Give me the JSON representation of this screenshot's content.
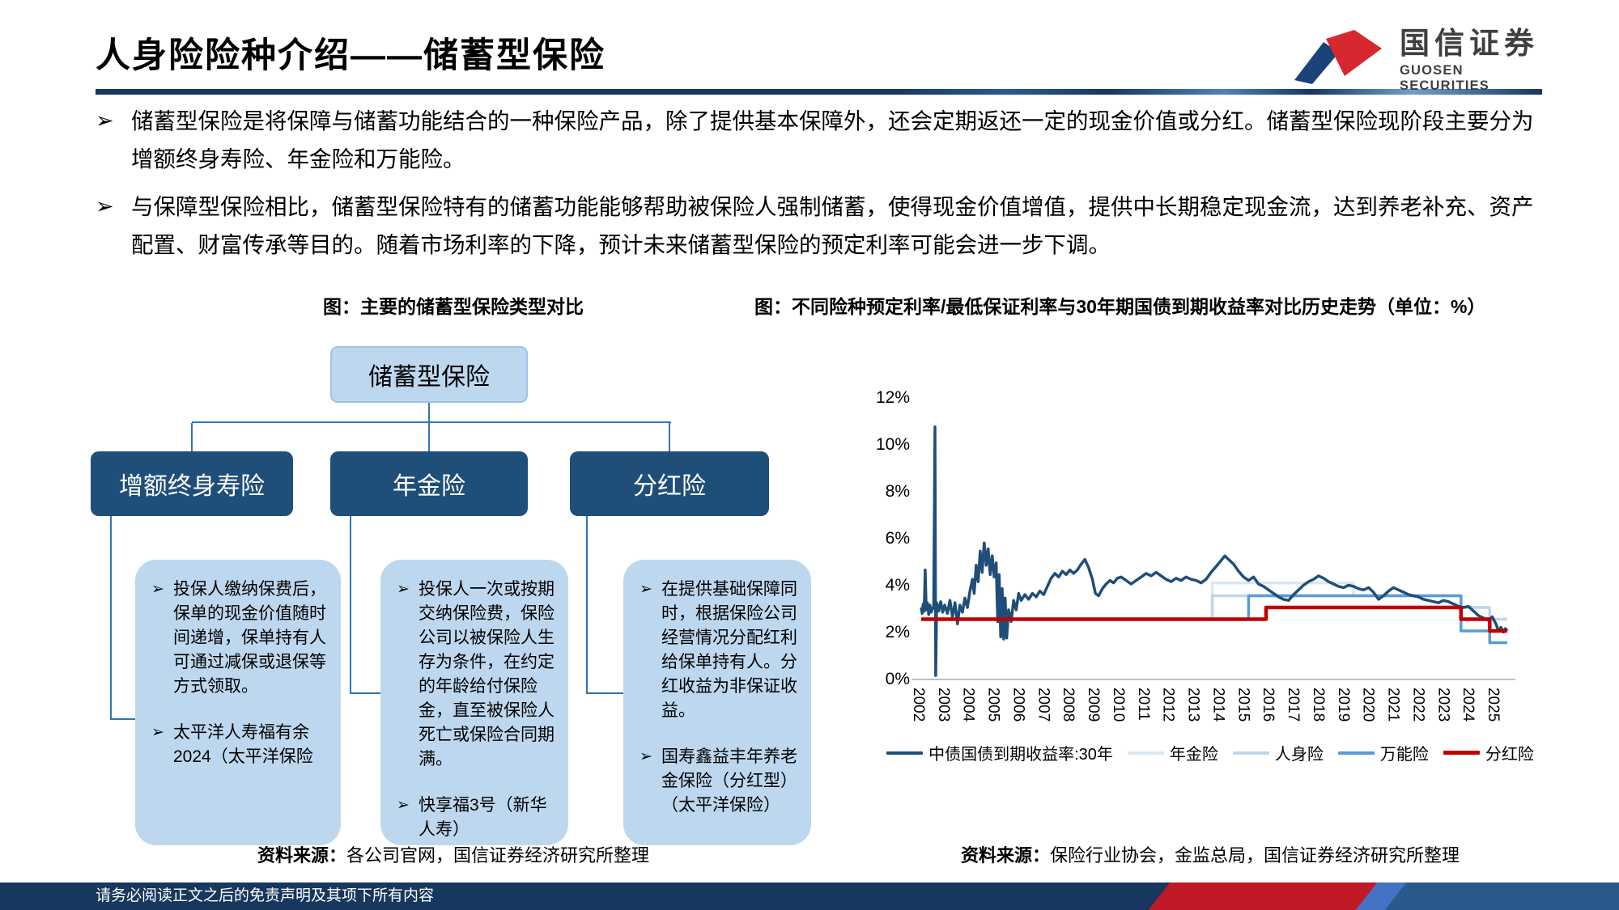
{
  "page": {
    "title": "人身险险种介绍——储蓄型保险",
    "logo": {
      "name_cn": "国信证券",
      "name_en": "GUOSEN SECURITIES"
    },
    "bullet_marker": "➢",
    "bullets": [
      "储蓄型保险是将保障与储蓄功能结合的一种保险产品，除了提供基本保障外，还会定期返还一定的现金价值或分红。储蓄型保险现阶段主要分为增额终身寿险、年金险和万能险。",
      "与保障型保险相比，储蓄型保险特有的储蓄功能能够帮助被保险人强制储蓄，使得现金价值增值，提供中长期稳定现金流，达到养老补充、资产配置、财富传承等目的。随着市场利率的下降，预计未来储蓄型保险的预定利率可能会进一步下调。"
    ],
    "footer_disclaimer": "请务必阅读正文之后的免责声明及其项下所有内容"
  },
  "diagram": {
    "caption": "图：主要的储蓄型保险类型对比",
    "root_label": "储蓄型保险",
    "branches": [
      {
        "label": "增额终身寿险",
        "points": [
          "投保人缴纳保费后，保单的现金价值随时间递增，保单持有人可通过减保或退保等方式领取。",
          "太平洋人寿福有余2024（太平洋保险"
        ]
      },
      {
        "label": "年金险",
        "points": [
          "投保人一次或按期交纳保险费，保险公司以被保险人生存为条件，在约定的年龄给付保险金，直至被保险人死亡或保险合同期满。",
          "快享福3号（新华人寿）"
        ]
      },
      {
        "label": "分红险",
        "points": [
          "在提供基础保障同时，根据保险公司经营情况分配红利给保单持有人。分红收益为非保证收益。",
          "国寿鑫益丰年养老金保险（分红型）（太平洋保险）"
        ]
      }
    ],
    "source_label": "资料来源：",
    "source_text": "各公司官网，国信证券经济研究所整理"
  },
  "chart_section": {
    "caption": "图：不同险种预定利率/最低保证利率与30年期国债到期收益率对比历史走势（单位：%）",
    "source_label": "资料来源：",
    "source_text": "保险行业协会，金监总局，国信证券经济研究所整理"
  },
  "chart_data": {
    "type": "line",
    "title": "不同险种预定利率/最低保证利率与30年期国债到期收益率对比历史走势",
    "unit": "%",
    "grid": false,
    "legend_position": "bottom",
    "ylim": [
      0,
      12
    ],
    "y_tick_values": [
      0,
      2,
      4,
      6,
      8,
      10,
      12
    ],
    "y_tick_labels": [
      "0%",
      "2%",
      "4%",
      "6%",
      "8%",
      "10%",
      "12%"
    ],
    "x_range": [
      2002,
      2025.5
    ],
    "x_tick_labels": [
      "2002",
      "2003",
      "2004",
      "2005",
      "2006",
      "2007",
      "2008",
      "2009",
      "2010",
      "2011",
      "2012",
      "2013",
      "2014",
      "2015",
      "2016",
      "2017",
      "2018",
      "2019",
      "2020",
      "2021",
      "2022",
      "2023",
      "2024",
      "2025"
    ],
    "series": [
      {
        "name": "中债国债到期收益率:30年",
        "color": "#1f4e79",
        "width": 3.5,
        "z": 4,
        "points": [
          [
            2002.0,
            3.0
          ],
          [
            2002.04,
            2.75
          ],
          [
            2002.08,
            3.15
          ],
          [
            2002.12,
            2.85
          ],
          [
            2002.16,
            4.6
          ],
          [
            2002.2,
            2.9
          ],
          [
            2002.25,
            3.2
          ],
          [
            2002.3,
            2.7
          ],
          [
            2002.35,
            3.1
          ],
          [
            2002.4,
            2.8
          ],
          [
            2002.5,
            3.05
          ],
          [
            2002.55,
            10.7
          ],
          [
            2002.58,
            0.1
          ],
          [
            2002.62,
            3.2
          ],
          [
            2002.7,
            2.85
          ],
          [
            2002.78,
            3.25
          ],
          [
            2002.86,
            2.8
          ],
          [
            2002.94,
            3.1
          ],
          [
            2003.05,
            2.75
          ],
          [
            2003.15,
            3.3
          ],
          [
            2003.25,
            2.6
          ],
          [
            2003.35,
            3.2
          ],
          [
            2003.45,
            2.3
          ],
          [
            2003.55,
            3.1
          ],
          [
            2003.65,
            2.8
          ],
          [
            2003.75,
            3.4
          ],
          [
            2003.85,
            3.0
          ],
          [
            2003.95,
            3.7
          ],
          [
            2004.05,
            4.2
          ],
          [
            2004.12,
            3.6
          ],
          [
            2004.2,
            4.8
          ],
          [
            2004.28,
            4.1
          ],
          [
            2004.36,
            5.4
          ],
          [
            2004.44,
            4.5
          ],
          [
            2004.52,
            5.75
          ],
          [
            2004.6,
            4.8
          ],
          [
            2004.68,
            5.5
          ],
          [
            2004.76,
            4.4
          ],
          [
            2004.84,
            5.2
          ],
          [
            2004.92,
            4.3
          ],
          [
            2005.0,
            4.9
          ],
          [
            2005.06,
            2.4
          ],
          [
            2005.12,
            4.4
          ],
          [
            2005.18,
            1.75
          ],
          [
            2005.24,
            3.8
          ],
          [
            2005.3,
            1.65
          ],
          [
            2005.36,
            3.4
          ],
          [
            2005.42,
            1.7
          ],
          [
            2005.5,
            2.9
          ],
          [
            2005.6,
            2.4
          ],
          [
            2005.7,
            3.3
          ],
          [
            2005.8,
            2.9
          ],
          [
            2005.9,
            3.6
          ],
          [
            2006.0,
            3.3
          ],
          [
            2006.15,
            3.55
          ],
          [
            2006.3,
            3.35
          ],
          [
            2006.45,
            3.6
          ],
          [
            2006.6,
            3.45
          ],
          [
            2006.75,
            3.7
          ],
          [
            2006.9,
            3.55
          ],
          [
            2007.05,
            3.9
          ],
          [
            2007.2,
            4.25
          ],
          [
            2007.35,
            4.45
          ],
          [
            2007.5,
            4.3
          ],
          [
            2007.65,
            4.55
          ],
          [
            2007.8,
            4.4
          ],
          [
            2007.95,
            4.6
          ],
          [
            2008.1,
            4.45
          ],
          [
            2008.25,
            4.6
          ],
          [
            2008.4,
            4.85
          ],
          [
            2008.55,
            5.05
          ],
          [
            2008.7,
            4.7
          ],
          [
            2008.85,
            4.2
          ],
          [
            2008.97,
            3.6
          ],
          [
            2009.1,
            3.5
          ],
          [
            2009.25,
            3.8
          ],
          [
            2009.4,
            4.0
          ],
          [
            2009.55,
            4.15
          ],
          [
            2009.7,
            4.05
          ],
          [
            2009.85,
            4.25
          ],
          [
            2010.0,
            4.3
          ],
          [
            2010.2,
            4.15
          ],
          [
            2010.4,
            4.0
          ],
          [
            2010.6,
            4.15
          ],
          [
            2010.8,
            4.3
          ],
          [
            2011.0,
            4.45
          ],
          [
            2011.2,
            4.35
          ],
          [
            2011.4,
            4.5
          ],
          [
            2011.6,
            4.35
          ],
          [
            2011.8,
            4.2
          ],
          [
            2012.0,
            4.1
          ],
          [
            2012.2,
            4.25
          ],
          [
            2012.4,
            4.15
          ],
          [
            2012.6,
            4.3
          ],
          [
            2012.8,
            4.2
          ],
          [
            2013.0,
            4.15
          ],
          [
            2013.2,
            4.05
          ],
          [
            2013.4,
            4.2
          ],
          [
            2013.6,
            4.5
          ],
          [
            2013.8,
            4.75
          ],
          [
            2014.0,
            5.0
          ],
          [
            2014.15,
            5.2
          ],
          [
            2014.3,
            5.05
          ],
          [
            2014.5,
            4.85
          ],
          [
            2014.7,
            4.55
          ],
          [
            2014.9,
            4.3
          ],
          [
            2015.1,
            4.15
          ],
          [
            2015.3,
            4.3
          ],
          [
            2015.5,
            4.0
          ],
          [
            2015.7,
            3.9
          ],
          [
            2015.9,
            3.75
          ],
          [
            2016.1,
            3.6
          ],
          [
            2016.3,
            3.45
          ],
          [
            2016.5,
            3.35
          ],
          [
            2016.7,
            3.3
          ],
          [
            2016.9,
            3.55
          ],
          [
            2017.1,
            3.75
          ],
          [
            2017.3,
            3.95
          ],
          [
            2017.5,
            4.1
          ],
          [
            2017.7,
            4.2
          ],
          [
            2017.9,
            4.35
          ],
          [
            2018.1,
            4.25
          ],
          [
            2018.3,
            4.1
          ],
          [
            2018.5,
            4.0
          ],
          [
            2018.7,
            3.9
          ],
          [
            2018.9,
            3.85
          ],
          [
            2019.1,
            3.95
          ],
          [
            2019.3,
            3.9
          ],
          [
            2019.5,
            3.8
          ],
          [
            2019.7,
            3.75
          ],
          [
            2019.9,
            3.85
          ],
          [
            2020.1,
            3.65
          ],
          [
            2020.3,
            3.35
          ],
          [
            2020.5,
            3.5
          ],
          [
            2020.7,
            3.7
          ],
          [
            2020.9,
            3.85
          ],
          [
            2021.1,
            3.75
          ],
          [
            2021.3,
            3.65
          ],
          [
            2021.5,
            3.55
          ],
          [
            2021.7,
            3.5
          ],
          [
            2021.9,
            3.45
          ],
          [
            2022.1,
            3.35
          ],
          [
            2022.3,
            3.3
          ],
          [
            2022.5,
            3.25
          ],
          [
            2022.7,
            3.2
          ],
          [
            2022.9,
            3.3
          ],
          [
            2023.1,
            3.25
          ],
          [
            2023.3,
            3.15
          ],
          [
            2023.5,
            3.05
          ],
          [
            2023.7,
            3.0
          ],
          [
            2023.9,
            3.05
          ],
          [
            2024.1,
            2.85
          ],
          [
            2024.3,
            2.65
          ],
          [
            2024.5,
            2.55
          ],
          [
            2024.7,
            2.45
          ],
          [
            2024.85,
            2.6
          ],
          [
            2025.0,
            2.3
          ],
          [
            2025.1,
            2.0
          ],
          [
            2025.2,
            2.15
          ],
          [
            2025.3,
            1.95
          ],
          [
            2025.38,
            2.1
          ],
          [
            2025.45,
            2.0
          ]
        ]
      },
      {
        "name": "年金险",
        "color": "#d9e6f3",
        "width": 3.5,
        "z": 1,
        "points": [
          [
            2002,
            2.5
          ],
          [
            2013.65,
            2.5
          ],
          [
            2013.65,
            4.05
          ],
          [
            2019.3,
            4.05
          ],
          [
            2019.3,
            3.5
          ],
          [
            2023.6,
            3.5
          ],
          [
            2023.6,
            3.0
          ],
          [
            2024.75,
            3.0
          ],
          [
            2024.75,
            2.5
          ],
          [
            2025.45,
            2.5
          ]
        ]
      },
      {
        "name": "人身险",
        "color": "#bdd7ee",
        "width": 3.5,
        "z": 2,
        "points": [
          [
            2002,
            2.5
          ],
          [
            2013.65,
            2.5
          ],
          [
            2013.65,
            3.5
          ],
          [
            2023.6,
            3.5
          ],
          [
            2023.6,
            3.0
          ],
          [
            2024.75,
            3.0
          ],
          [
            2024.75,
            2.5
          ],
          [
            2025.45,
            2.5
          ]
        ]
      },
      {
        "name": "万能险",
        "color": "#5b9bd5",
        "width": 3.5,
        "z": 3,
        "points": [
          [
            2002,
            2.5
          ],
          [
            2015.1,
            2.5
          ],
          [
            2015.1,
            3.5
          ],
          [
            2023.6,
            3.5
          ],
          [
            2023.6,
            2.0
          ],
          [
            2024.75,
            2.0
          ],
          [
            2024.75,
            1.5
          ],
          [
            2025.45,
            1.5
          ]
        ]
      },
      {
        "name": "分红险",
        "color": "#c00000",
        "width": 4.5,
        "z": 5,
        "points": [
          [
            2002,
            2.5
          ],
          [
            2015.8,
            2.5
          ],
          [
            2015.8,
            3.0
          ],
          [
            2023.6,
            3.0
          ],
          [
            2023.6,
            2.5
          ],
          [
            2024.75,
            2.5
          ],
          [
            2024.75,
            2.0
          ],
          [
            2025.45,
            2.0
          ]
        ]
      }
    ]
  }
}
